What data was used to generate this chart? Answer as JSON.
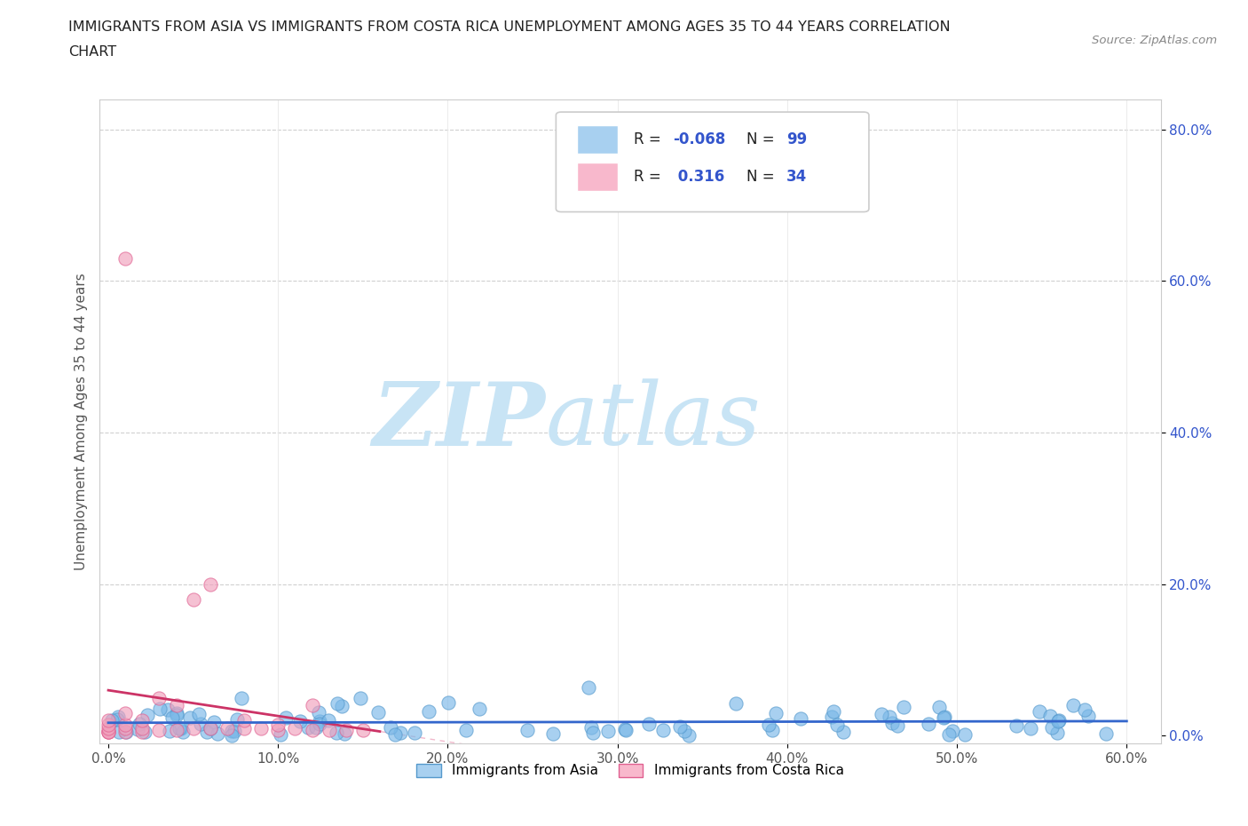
{
  "title_line1": "IMMIGRANTS FROM ASIA VS IMMIGRANTS FROM COSTA RICA UNEMPLOYMENT AMONG AGES 35 TO 44 YEARS CORRELATION",
  "title_line2": "CHART",
  "source_text": "Source: ZipAtlas.com",
  "ylabel_label": "Unemployment Among Ages 35 to 44 years",
  "xlim": [
    -0.005,
    0.62
  ],
  "ylim": [
    -0.01,
    0.84
  ],
  "ytick_vals": [
    0.0,
    0.2,
    0.4,
    0.6,
    0.8
  ],
  "ytick_labels": [
    "0.0%",
    "20.0%",
    "40.0%",
    "60.0%",
    "80.0%"
  ],
  "xtick_vals": [
    0.0,
    0.1,
    0.2,
    0.3,
    0.4,
    0.5,
    0.6
  ],
  "xtick_labels": [
    "0.0%",
    "10.0%",
    "20.0%",
    "30.0%",
    "40.0%",
    "50.0%",
    "60.0%"
  ],
  "legend_labels_bottom": [
    "Immigrants from Asia",
    "Immigrants from Costa Rica"
  ],
  "watermark_zip": "ZIP",
  "watermark_atlas": "atlas",
  "watermark_color_zip": "#c8e4f5",
  "watermark_color_atlas": "#c8e4f5",
  "background_color": "#ffffff",
  "grid_color": "#e8e8e8",
  "asia_color": "#7ab8e8",
  "asia_edge_color": "#5599cc",
  "costa_rica_color": "#f0a0bc",
  "costa_rica_edge_color": "#e06090",
  "asia_trendline_color": "#3366cc",
  "costa_rica_solid_color": "#cc3366",
  "costa_rica_dash_color": "#e88aaa",
  "legend_text_color": "#3355cc",
  "legend_R_color": "#cc3366",
  "r_asia": "-0.068",
  "n_asia": "99",
  "r_cr": "0.316",
  "n_cr": "34"
}
